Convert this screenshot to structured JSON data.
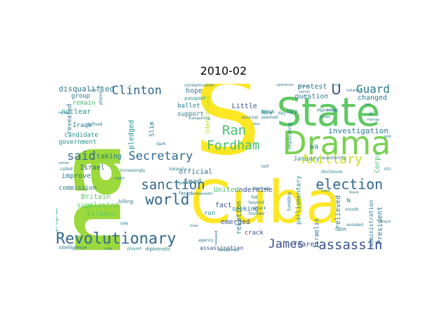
{
  "title": "2010-02",
  "words": {
    "s": "S",
    "na": "na",
    "state": "State",
    "cuba": "Cuba",
    "drama": "Drama",
    "revolutionary": "Revolutionary",
    "assassin": "assassin",
    "world": "world",
    "sanction": "sanction",
    "election": "election",
    "secretary": "Secretary",
    "fordham": "Fordham",
    "ran": "Ran",
    "axillary": "Axillary",
    "clinton": "Clinton",
    "guard": "Guard",
    "said": "said",
    "james": "James",
    "u": "U",
    "disqualified": "disqualified",
    "nuclear": "nuclear",
    "candidate": "candidate",
    "government": "government",
    "improve": "improve",
    "commission": "commission",
    "britain": "Britain",
    "supplanted": "supplanted",
    "islamic": "Islamic",
    "program": "program",
    "group": "group",
    "remain": "remain",
    "iraqa": "Iraqa",
    "israel": "Israel",
    "taking": "taking",
    "pledged": "pledged",
    "slim": "Slim",
    "hope": "hope",
    "support": "support",
    "ballot": "ballot",
    "official": "official",
    "identified": "identified",
    "little": "Little",
    "investigation": "investigation",
    "protest": "protest",
    "question": "question",
    "changed": "changed",
    "undermine": "undermine",
    "fact": "fact",
    "emerged": "emerged",
    "crack": "crack",
    "feared": "feared",
    "assassination": "assassination",
    "relation": "relation",
    "parliamentary": "parliamentary",
    "january": "January",
    "president": "President",
    "relieved": "relieved",
    "administration": "administration",
    "corps": "Corps",
    "lead": "lead",
    "united": "United",
    "new": "New",
    "spy": "spy",
    "wa": "wa",
    "seeking": "seeking",
    "run": "run",
    "revealed": "revealed",
    "israelis": "Israelis",
    "passport": "passport",
    "condemnation": "condemnation",
    "intelligence": "intelligence",
    "diplomatic": "diplomatic",
    "played": "played",
    "faith": "faith",
    "dubai": "Dubai",
    "mahmoud": "Mahmoud",
    "british": "British",
    "hit": "hit",
    "killing": "killing",
    "faced": "faced",
    "ireland": "Ireland",
    "dark": "dark",
    "increasingly": "increasingly",
    "called": "called",
    "use": "use",
    "recent": "recent",
    "senior": "senior",
    "beyond": "beyond",
    "attack": "attack",
    "founder": "founder",
    "deepened": "deepened",
    "agency": "agency",
    "secret": "secret",
    "public": "public",
    "police": "police",
    "month": "month",
    "strain": "strain",
    "disclosure": "disclosure",
    "questioning": "questioning",
    "implicating": "implicating",
    "fumbling": "fumbling",
    "avoided": "avoided",
    "operation": "operation",
    "ambassador": "ambassador",
    "transporting": "transporting",
    "planning": "planning",
    "defined": "defined",
    "role": "role",
    "survival": "survival",
    "day": "day",
    "last": "last",
    "seemed": "seemed",
    "damask": "Damask",
    "n": "N",
    "might": "might",
    "time": "time",
    "enquiry": "enquiry",
    "isolation": "isolation",
    "hotel": "hotel",
    "war": "war",
    "al": "al",
    "ring": "ring",
    "part": "part",
    "released": "released",
    "leave": "leave",
    "prison": "prison",
    "hamas": "Hamas",
    "also": "also",
    "used": "used"
  }
}
